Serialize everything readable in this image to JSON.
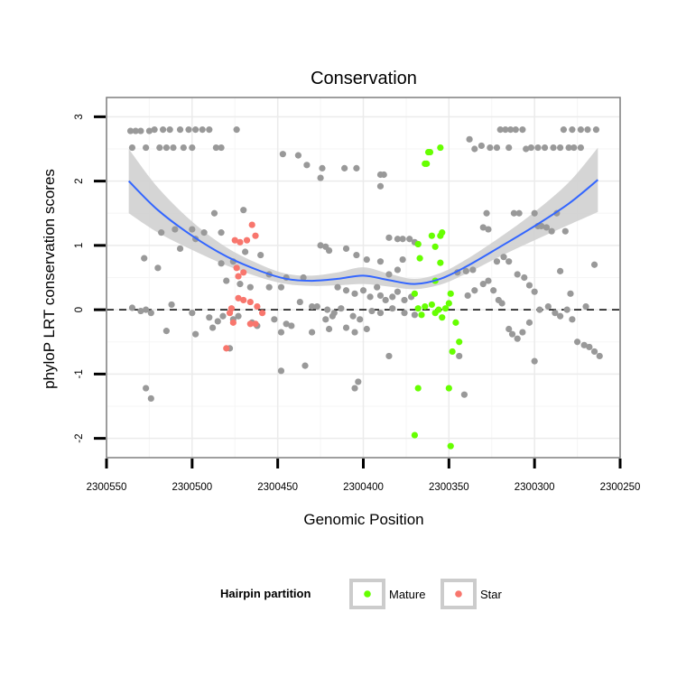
{
  "chart_data": {
    "type": "scatter",
    "title": "Conservation",
    "xlabel": "Genomic Position",
    "ylabel": "phyloP LRT conservation scores",
    "xlim": [
      2300550,
      2300250
    ],
    "x_reversed": true,
    "ylim": [
      -2.3,
      3.3
    ],
    "x_ticks": [
      2300550,
      2300500,
      2300450,
      2300400,
      2300350,
      2300300,
      2300250
    ],
    "x_tick_labels": [
      "2300550",
      "2300500",
      "2300450",
      "2300400",
      "2300350",
      "2300300",
      "2300250"
    ],
    "y_ticks": [
      -2,
      -1,
      0,
      1,
      2,
      3
    ],
    "y_tick_labels": [
      "-2",
      "-1",
      "0",
      "1",
      "2",
      "3"
    ],
    "reference_line": {
      "y": 0,
      "style": "dashed",
      "color": "#000000"
    },
    "colors": {
      "other": "#999999",
      "mature": "#66ff00",
      "star": "#f8766d",
      "smooth": "#3366ff",
      "ribbon": "#d0d0d0",
      "background": "#ffffff",
      "grid": "#ebebeb"
    },
    "legend": {
      "title": "Hairpin partition",
      "position": "bottom",
      "entries": [
        {
          "label": "Mature",
          "color": "#66ff00"
        },
        {
          "label": "Star",
          "color": "#f8766d"
        }
      ]
    },
    "smooth": {
      "x": [
        2300537,
        2300520,
        2300500,
        2300480,
        2300460,
        2300445,
        2300430,
        2300415,
        2300400,
        2300385,
        2300370,
        2300355,
        2300340,
        2300320,
        2300300,
        2300280,
        2300263
      ],
      "y": [
        2.0,
        1.55,
        1.15,
        0.83,
        0.6,
        0.48,
        0.45,
        0.48,
        0.53,
        0.46,
        0.4,
        0.48,
        0.67,
        0.98,
        1.3,
        1.65,
        2.02
      ],
      "se": [
        0.5,
        0.35,
        0.22,
        0.14,
        0.1,
        0.08,
        0.08,
        0.1,
        0.13,
        0.1,
        0.08,
        0.09,
        0.11,
        0.15,
        0.22,
        0.33,
        0.5
      ]
    },
    "series": [
      {
        "name": "Other",
        "points": [
          [
            2300536,
            2.78
          ],
          [
            2300533,
            2.78
          ],
          [
            2300530,
            2.78
          ],
          [
            2300525,
            2.78
          ],
          [
            2300522,
            2.8
          ],
          [
            2300517,
            2.8
          ],
          [
            2300513,
            2.8
          ],
          [
            2300507,
            2.8
          ],
          [
            2300502,
            2.8
          ],
          [
            2300498,
            2.8
          ],
          [
            2300494,
            2.8
          ],
          [
            2300490,
            2.8
          ],
          [
            2300474,
            2.8
          ],
          [
            2300535,
            2.52
          ],
          [
            2300527,
            2.52
          ],
          [
            2300519,
            2.52
          ],
          [
            2300515,
            2.52
          ],
          [
            2300511,
            2.52
          ],
          [
            2300505,
            2.52
          ],
          [
            2300500,
            2.52
          ],
          [
            2300486,
            2.52
          ],
          [
            2300483,
            2.52
          ],
          [
            2300487,
            1.5
          ],
          [
            2300470,
            1.55
          ],
          [
            2300493,
            1.2
          ],
          [
            2300510,
            1.25
          ],
          [
            2300500,
            1.25
          ],
          [
            2300518,
            1.2
          ],
          [
            2300498,
            1.1
          ],
          [
            2300483,
            1.2
          ],
          [
            2300469,
            0.9
          ],
          [
            2300460,
            0.85
          ],
          [
            2300528,
            0.8
          ],
          [
            2300507,
            0.95
          ],
          [
            2300520,
            0.65
          ],
          [
            2300483,
            0.72
          ],
          [
            2300476,
            0.75
          ],
          [
            2300455,
            0.55
          ],
          [
            2300445,
            0.5
          ],
          [
            2300435,
            0.5
          ],
          [
            2300466,
            0.35
          ],
          [
            2300455,
            0.35
          ],
          [
            2300448,
            0.35
          ],
          [
            2300472,
            0.4
          ],
          [
            2300480,
            0.45
          ],
          [
            2300535,
            0.03
          ],
          [
            2300530,
            -0.02
          ],
          [
            2300527,
            0.0
          ],
          [
            2300524,
            -0.05
          ],
          [
            2300512,
            0.08
          ],
          [
            2300500,
            -0.05
          ],
          [
            2300490,
            -0.12
          ],
          [
            2300485,
            -0.18
          ],
          [
            2300482,
            -0.1
          ],
          [
            2300476,
            -0.15
          ],
          [
            2300473,
            -0.1
          ],
          [
            2300465,
            -0.2
          ],
          [
            2300452,
            -0.15
          ],
          [
            2300445,
            -0.22
          ],
          [
            2300437,
            0.12
          ],
          [
            2300430,
            0.05
          ],
          [
            2300427,
            0.05
          ],
          [
            2300421,
            0.0
          ],
          [
            2300417,
            -0.05
          ],
          [
            2300413,
            0.02
          ],
          [
            2300406,
            -0.1
          ],
          [
            2300402,
            -0.15
          ],
          [
            2300395,
            -0.02
          ],
          [
            2300390,
            -0.05
          ],
          [
            2300383,
            0.02
          ],
          [
            2300376,
            -0.05
          ],
          [
            2300370,
            -0.08
          ],
          [
            2300515,
            -0.33
          ],
          [
            2300498,
            -0.38
          ],
          [
            2300488,
            -0.28
          ],
          [
            2300478,
            -0.6
          ],
          [
            2300462,
            -0.25
          ],
          [
            2300448,
            -0.35
          ],
          [
            2300442,
            -0.25
          ],
          [
            2300430,
            -0.35
          ],
          [
            2300420,
            -0.3
          ],
          [
            2300410,
            -0.28
          ],
          [
            2300405,
            -0.35
          ],
          [
            2300385,
            -0.72
          ],
          [
            2300398,
            -0.3
          ],
          [
            2300527,
            -1.22
          ],
          [
            2300524,
            -1.38
          ],
          [
            2300448,
            -0.95
          ],
          [
            2300434,
            -0.87
          ],
          [
            2300405,
            -1.22
          ],
          [
            2300403,
            -1.12
          ],
          [
            2300447,
            2.42
          ],
          [
            2300438,
            2.4
          ],
          [
            2300433,
            2.25
          ],
          [
            2300424,
            2.2
          ],
          [
            2300425,
            2.05
          ],
          [
            2300411,
            2.2
          ],
          [
            2300404,
            2.2
          ],
          [
            2300390,
            2.1
          ],
          [
            2300388,
            2.1
          ],
          [
            2300390,
            1.92
          ],
          [
            2300425,
            1.0
          ],
          [
            2300422,
            0.98
          ],
          [
            2300420,
            0.92
          ],
          [
            2300410,
            0.95
          ],
          [
            2300404,
            0.85
          ],
          [
            2300398,
            0.78
          ],
          [
            2300390,
            0.75
          ],
          [
            2300385,
            0.55
          ],
          [
            2300380,
            0.62
          ],
          [
            2300377,
            0.78
          ],
          [
            2300385,
            1.12
          ],
          [
            2300380,
            1.1
          ],
          [
            2300377,
            1.1
          ],
          [
            2300373,
            1.1
          ],
          [
            2300370,
            1.05
          ],
          [
            2300368,
            1.02
          ],
          [
            2300415,
            0.35
          ],
          [
            2300410,
            0.3
          ],
          [
            2300405,
            0.25
          ],
          [
            2300400,
            0.3
          ],
          [
            2300396,
            0.2
          ],
          [
            2300392,
            0.35
          ],
          [
            2300390,
            0.22
          ],
          [
            2300387,
            0.15
          ],
          [
            2300383,
            0.2
          ],
          [
            2300380,
            0.28
          ],
          [
            2300376,
            0.15
          ],
          [
            2300372,
            0.2
          ],
          [
            2300422,
            -0.15
          ],
          [
            2300418,
            -0.1
          ],
          [
            2300344,
            -0.72
          ],
          [
            2300341,
            -1.32
          ],
          [
            2300339,
            0.22
          ],
          [
            2300335,
            0.3
          ],
          [
            2300330,
            0.4
          ],
          [
            2300327,
            0.45
          ],
          [
            2300324,
            0.3
          ],
          [
            2300321,
            0.15
          ],
          [
            2300319,
            0.1
          ],
          [
            2300315,
            -0.3
          ],
          [
            2300313,
            -0.38
          ],
          [
            2300310,
            -0.45
          ],
          [
            2300307,
            -0.35
          ],
          [
            2300303,
            -0.2
          ],
          [
            2300300,
            -0.8
          ],
          [
            2300297,
            0.0
          ],
          [
            2300292,
            0.05
          ],
          [
            2300288,
            -0.05
          ],
          [
            2300285,
            -0.1
          ],
          [
            2300281,
            0.0
          ],
          [
            2300278,
            -0.15
          ],
          [
            2300275,
            -0.5
          ],
          [
            2300271,
            -0.55
          ],
          [
            2300268,
            -0.58
          ],
          [
            2300265,
            -0.65
          ],
          [
            2300262,
            -0.72
          ],
          [
            2300345,
            0.58
          ],
          [
            2300340,
            0.6
          ],
          [
            2300336,
            0.62
          ],
          [
            2300330,
            1.28
          ],
          [
            2300327,
            1.25
          ],
          [
            2300322,
            0.75
          ],
          [
            2300318,
            0.82
          ],
          [
            2300315,
            0.75
          ],
          [
            2300310,
            0.55
          ],
          [
            2300306,
            0.5
          ],
          [
            2300303,
            0.38
          ],
          [
            2300300,
            0.28
          ],
          [
            2300296,
            1.3
          ],
          [
            2300293,
            1.28
          ],
          [
            2300290,
            1.22
          ],
          [
            2300285,
            0.6
          ],
          [
            2300279,
            0.25
          ],
          [
            2300270,
            0.05
          ],
          [
            2300265,
            0.7
          ],
          [
            2300331,
            2.55
          ],
          [
            2300335,
            2.5
          ],
          [
            2300326,
            2.52
          ],
          [
            2300322,
            2.52
          ],
          [
            2300315,
            2.52
          ],
          [
            2300305,
            2.5
          ],
          [
            2300302,
            2.52
          ],
          [
            2300298,
            2.52
          ],
          [
            2300294,
            2.52
          ],
          [
            2300289,
            2.52
          ],
          [
            2300285,
            2.52
          ],
          [
            2300280,
            2.52
          ],
          [
            2300277,
            2.52
          ],
          [
            2300273,
            2.52
          ],
          [
            2300320,
            2.8
          ],
          [
            2300317,
            2.8
          ],
          [
            2300314,
            2.8
          ],
          [
            2300311,
            2.8
          ],
          [
            2300307,
            2.8
          ],
          [
            2300283,
            2.8
          ],
          [
            2300278,
            2.8
          ],
          [
            2300273,
            2.8
          ],
          [
            2300269,
            2.8
          ],
          [
            2300264,
            2.8
          ],
          [
            2300338,
            2.65
          ],
          [
            2300328,
            1.5
          ],
          [
            2300312,
            1.5
          ],
          [
            2300309,
            1.5
          ],
          [
            2300300,
            1.5
          ],
          [
            2300298,
            1.3
          ],
          [
            2300287,
            1.5
          ],
          [
            2300282,
            1.22
          ]
        ]
      },
      {
        "name": "Mature",
        "points": [
          [
            2300368,
            1.02
          ],
          [
            2300367,
            0.8
          ],
          [
            2300362,
            2.45
          ],
          [
            2300361,
            2.45
          ],
          [
            2300364,
            2.27
          ],
          [
            2300363,
            2.27
          ],
          [
            2300360,
            1.15
          ],
          [
            2300358,
            0.98
          ],
          [
            2300355,
            1.15
          ],
          [
            2300354,
            1.2
          ],
          [
            2300355,
            0.73
          ],
          [
            2300358,
            0.45
          ],
          [
            2300355,
            2.52
          ],
          [
            2300370,
            0.25
          ],
          [
            2300368,
            0.02
          ],
          [
            2300366,
            -0.08
          ],
          [
            2300364,
            0.05
          ],
          [
            2300360,
            0.08
          ],
          [
            2300358,
            -0.05
          ],
          [
            2300356,
            0.0
          ],
          [
            2300354,
            -0.12
          ],
          [
            2300350,
            0.1
          ],
          [
            2300349,
            0.25
          ],
          [
            2300352,
            0.02
          ],
          [
            2300346,
            -0.2
          ],
          [
            2300344,
            -0.5
          ],
          [
            2300348,
            -0.65
          ],
          [
            2300368,
            -1.22
          ],
          [
            2300350,
            -1.22
          ],
          [
            2300370,
            -1.95
          ],
          [
            2300349,
            -2.12
          ]
        ]
      },
      {
        "name": "Star",
        "points": [
          [
            2300465,
            1.32
          ],
          [
            2300463,
            1.15
          ],
          [
            2300468,
            1.08
          ],
          [
            2300472,
            1.05
          ],
          [
            2300475,
            1.08
          ],
          [
            2300473,
            0.52
          ],
          [
            2300470,
            0.58
          ],
          [
            2300474,
            0.65
          ],
          [
            2300470,
            0.15
          ],
          [
            2300466,
            0.12
          ],
          [
            2300473,
            0.18
          ],
          [
            2300477,
            0.02
          ],
          [
            2300478,
            -0.05
          ],
          [
            2300462,
            0.05
          ],
          [
            2300459,
            -0.05
          ],
          [
            2300466,
            -0.22
          ],
          [
            2300463,
            -0.22
          ],
          [
            2300476,
            -0.2
          ],
          [
            2300480,
            -0.6
          ]
        ]
      }
    ]
  }
}
